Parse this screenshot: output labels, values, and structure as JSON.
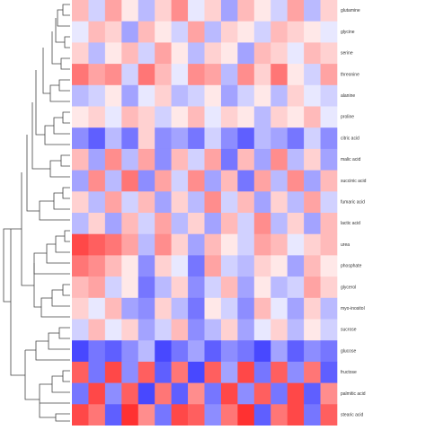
{
  "chart_data": {
    "type": "heatmap",
    "colormap": [
      "#1a1aff",
      "#ffffff",
      "#ff1a1a"
    ],
    "zlim": [
      -1,
      1
    ],
    "rows": [
      "glutamine",
      "glycine",
      "serine",
      "threonine",
      "alanine",
      "proline",
      "citric acid",
      "malic acid",
      "succinic acid",
      "fumaric acid",
      "lactic acid",
      "urea",
      "phosphate",
      "glycerol",
      "myo-inositol",
      "sucrose",
      "glucose",
      "fructose",
      "palmitic acid",
      "stearic acid"
    ],
    "values": [
      [
        0.3,
        -0.2,
        0.4,
        0.1,
        -0.3,
        0.2,
        0.5,
        -0.1,
        0.2,
        -0.4,
        0.3,
        0.1,
        -0.2,
        0.4,
        -0.3,
        0.2
      ],
      [
        -0.1,
        0.3,
        0.2,
        -0.4,
        0.3,
        0.1,
        -0.2,
        0.4,
        -0.3,
        0.2,
        0.1,
        -0.2,
        0.3,
        0.2,
        0.1,
        -0.1
      ],
      [
        0.2,
        -0.3,
        0.1,
        0.3,
        -0.2,
        0.4,
        0.1,
        -0.3,
        0.2,
        0.1,
        -0.4,
        0.3,
        0.2,
        -0.1,
        0.3,
        0.2
      ],
      [
        0.6,
        0.4,
        0.5,
        -0.2,
        0.6,
        0.3,
        -0.1,
        0.5,
        0.4,
        -0.3,
        0.5,
        0.2,
        0.6,
        0.1,
        -0.2,
        0.4
      ],
      [
        -0.3,
        -0.2,
        0.1,
        -0.4,
        -0.1,
        0.2,
        -0.3,
        -0.2,
        0.1,
        -0.4,
        -0.2,
        0.1,
        -0.3,
        0.2,
        -0.1,
        -0.2
      ],
      [
        0.1,
        0.2,
        -0.1,
        0.3,
        0.2,
        -0.2,
        0.1,
        0.3,
        -0.1,
        0.2,
        0.1,
        -0.3,
        0.2,
        0.1,
        0.3,
        -0.1
      ],
      [
        -0.5,
        -0.7,
        -0.3,
        -0.6,
        0.2,
        -0.5,
        -0.4,
        -0.6,
        -0.2,
        -0.5,
        -0.7,
        -0.3,
        -0.4,
        -0.6,
        -0.2,
        -0.5
      ],
      [
        0.3,
        -0.4,
        0.5,
        -0.3,
        0.4,
        -0.5,
        0.3,
        -0.2,
        0.4,
        -0.6,
        0.3,
        -0.4,
        0.5,
        -0.3,
        0.2,
        -0.4
      ],
      [
        -0.4,
        0.5,
        -0.3,
        0.6,
        -0.5,
        0.4,
        -0.2,
        0.5,
        -0.4,
        0.3,
        -0.6,
        0.4,
        -0.3,
        0.5,
        -0.4,
        0.3
      ],
      [
        0.2,
        -0.3,
        0.4,
        -0.2,
        0.3,
        -0.4,
        0.2,
        -0.3,
        0.5,
        -0.2,
        0.3,
        -0.4,
        0.2,
        -0.3,
        0.4,
        -0.2
      ],
      [
        -0.3,
        0.2,
        -0.4,
        0.3,
        -0.2,
        0.4,
        -0.3,
        0.2,
        -0.4,
        0.3,
        -0.2,
        0.5,
        -0.3,
        0.2,
        -0.4,
        0.3
      ],
      [
        0.8,
        0.7,
        0.6,
        0.4,
        -0.3,
        0.5,
        0.2,
        -0.4,
        0.3,
        0.1,
        -0.2,
        0.4,
        0.3,
        -0.1,
        0.2,
        0.3
      ],
      [
        0.6,
        0.5,
        0.3,
        0.1,
        -0.5,
        0.2,
        -0.1,
        -0.6,
        0.4,
        -0.2,
        -0.3,
        0.2,
        0.1,
        -0.4,
        0.3,
        0.1
      ],
      [
        0.3,
        0.4,
        -0.2,
        0.1,
        -0.6,
        -0.3,
        0.2,
        -0.5,
        -0.2,
        0.3,
        -0.4,
        0.1,
        -0.3,
        -0.2,
        0.4,
        0.2
      ],
      [
        0.2,
        -0.1,
        0.3,
        -0.4,
        -0.5,
        0.2,
        -0.3,
        -0.6,
        0.1,
        -0.2,
        -0.5,
        0.3,
        -0.1,
        -0.4,
        0.2,
        -0.3
      ],
      [
        -0.2,
        0.3,
        -0.1,
        0.2,
        -0.4,
        -0.2,
        0.3,
        -0.5,
        -0.3,
        0.2,
        -0.4,
        -0.1,
        0.2,
        -0.3,
        0.1,
        -0.2
      ],
      [
        -0.8,
        -0.6,
        -0.7,
        -0.5,
        -0.3,
        -0.8,
        -0.6,
        -0.4,
        -0.7,
        -0.5,
        -0.6,
        -0.8,
        -0.4,
        -0.7,
        -0.5,
        -0.6
      ],
      [
        0.7,
        -0.6,
        0.8,
        -0.5,
        0.7,
        -0.7,
        0.6,
        -0.8,
        0.7,
        -0.4,
        0.8,
        -0.6,
        0.7,
        -0.5,
        0.6,
        -0.7
      ],
      [
        -0.6,
        0.8,
        -0.5,
        0.7,
        -0.8,
        0.6,
        -0.7,
        0.5,
        -0.6,
        0.8,
        -0.5,
        0.7,
        -0.6,
        0.8,
        -0.7,
        0.5
      ],
      [
        0.8,
        0.6,
        -0.7,
        0.9,
        0.5,
        -0.6,
        0.8,
        0.7,
        -0.5,
        0.6,
        0.9,
        -0.7,
        0.6,
        0.8,
        -0.6,
        0.7
      ]
    ]
  }
}
